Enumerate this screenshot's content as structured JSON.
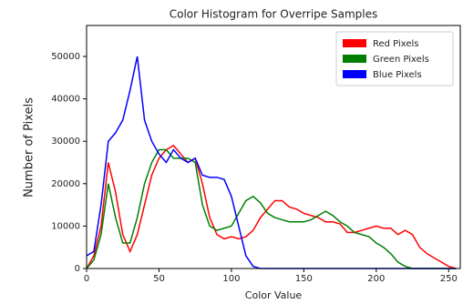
{
  "chart_data": {
    "type": "line",
    "title": "Color Histogram for Overripe Samples",
    "x_label": "Color Value",
    "y_label": "Number of Pixels",
    "x": [
      0,
      5,
      10,
      15,
      20,
      25,
      30,
      35,
      40,
      45,
      50,
      55,
      60,
      65,
      70,
      75,
      80,
      85,
      90,
      95,
      100,
      105,
      110,
      115,
      120,
      125,
      130,
      135,
      140,
      145,
      150,
      155,
      160,
      165,
      170,
      175,
      180,
      185,
      190,
      195,
      200,
      205,
      210,
      215,
      220,
      225,
      230,
      235,
      240,
      245,
      250,
      255
    ],
    "series": [
      {
        "name": "Red Pixels",
        "color": "#ff0000",
        "values": [
          0,
          3000,
          10000,
          25000,
          18000,
          8000,
          4000,
          8000,
          15000,
          22000,
          26000,
          28000,
          29000,
          27000,
          25000,
          26000,
          20000,
          12000,
          8000,
          7000,
          7500,
          7000,
          7500,
          9000,
          12000,
          14000,
          16000,
          16000,
          14500,
          14000,
          13000,
          12500,
          12000,
          11000,
          11000,
          10500,
          8500,
          8500,
          9000,
          9500,
          10000,
          9500,
          9500,
          8000,
          9000,
          8000,
          5000,
          3500,
          2500,
          1500,
          500,
          0
        ]
      },
      {
        "name": "Green Pixels",
        "color": "#008000",
        "values": [
          0,
          2000,
          8000,
          20000,
          12000,
          6000,
          6000,
          12000,
          20000,
          25000,
          28000,
          28000,
          26000,
          26000,
          26000,
          25000,
          15000,
          10000,
          9000,
          9500,
          10000,
          13000,
          16000,
          17000,
          15500,
          13000,
          12000,
          11500,
          11000,
          11000,
          11000,
          11500,
          12500,
          13500,
          12500,
          11000,
          10000,
          8500,
          8000,
          7500,
          6000,
          5000,
          3500,
          1500,
          500,
          0,
          0,
          0,
          0,
          0,
          0,
          0
        ]
      },
      {
        "name": "Blue Pixels",
        "color": "#0000ff",
        "values": [
          3000,
          4000,
          15000,
          30000,
          32000,
          35000,
          42000,
          50000,
          35000,
          30000,
          27000,
          25000,
          28000,
          26000,
          25000,
          26000,
          22000,
          21500,
          21500,
          21000,
          17000,
          10000,
          3000,
          500,
          0,
          0,
          0,
          0,
          0,
          0,
          0,
          0,
          0,
          0,
          0,
          0,
          0,
          0,
          0,
          0,
          0,
          0,
          0,
          0,
          0,
          0,
          0,
          0,
          0,
          0,
          0,
          0
        ]
      }
    ],
    "xlim": [
      0,
      258
    ],
    "ylim": [
      0,
      57300
    ],
    "xticks": [
      0,
      50,
      100,
      150,
      200,
      250
    ],
    "yticks": [
      0,
      10000,
      20000,
      30000,
      40000,
      50000
    ],
    "legend": "upper right"
  }
}
